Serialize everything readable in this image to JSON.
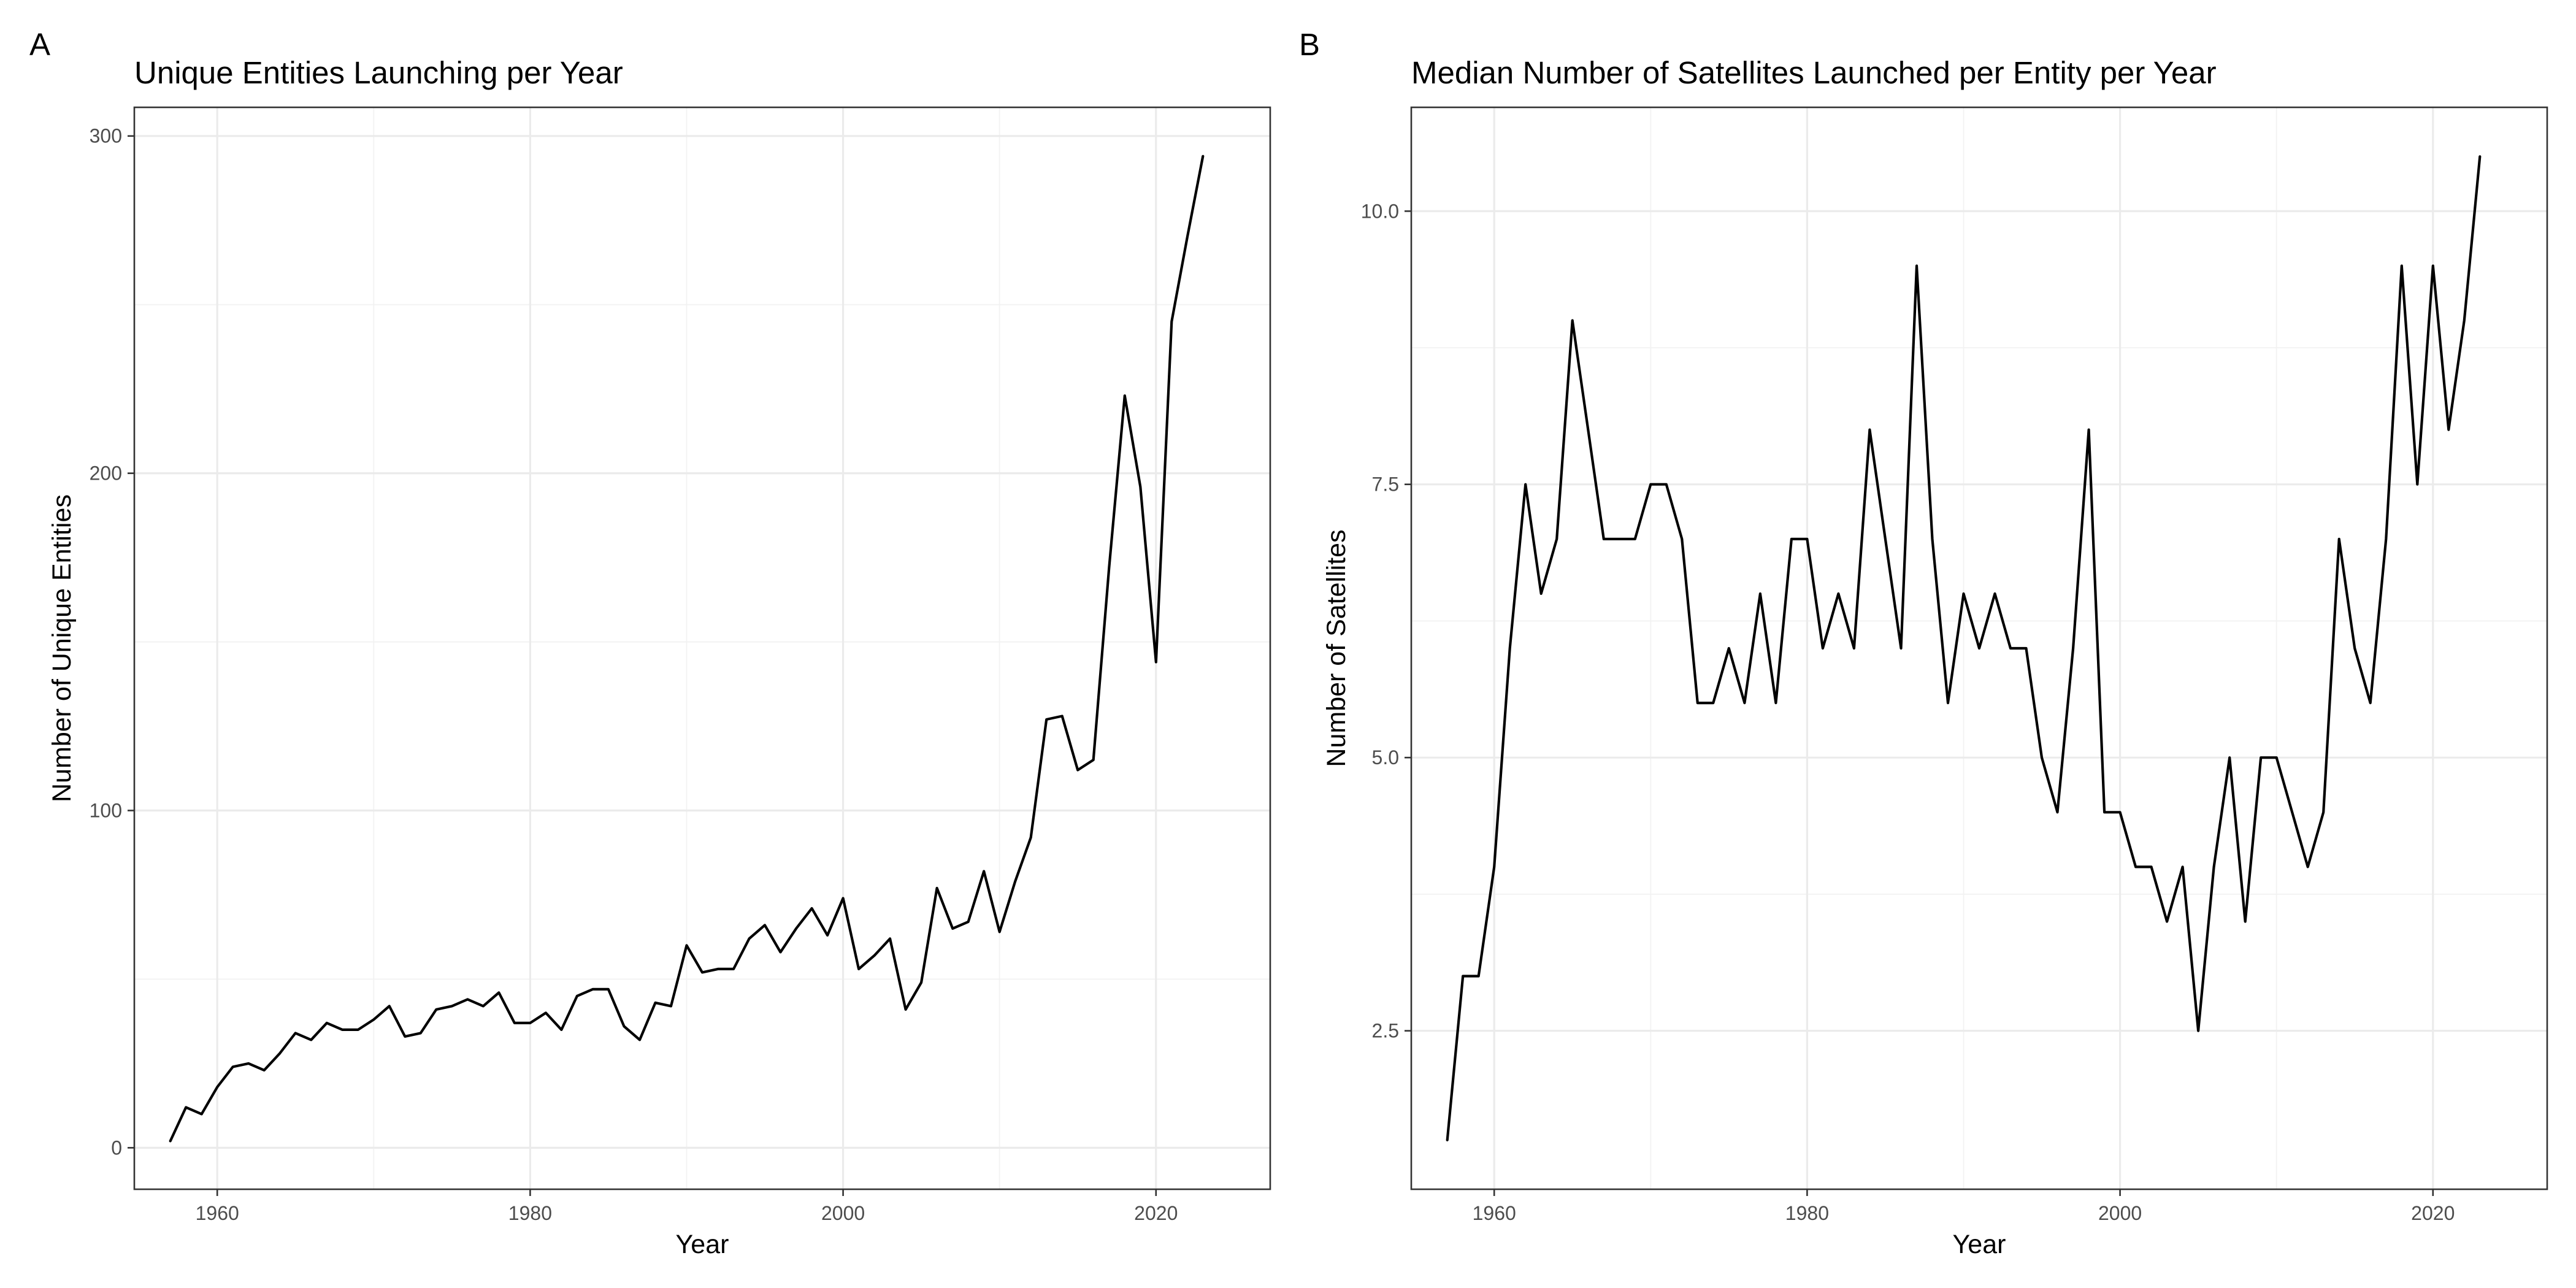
{
  "chart_data": [
    {
      "panel": "A",
      "type": "line",
      "title": "Unique Entities Launching per Year",
      "xlabel": "Year",
      "ylabel": "Number of Unique Entities",
      "xlim": [
        1954.7,
        2027.3
      ],
      "ylim": [
        -12.3,
        308.5
      ],
      "x_ticks": [
        1960,
        1980,
        2000,
        2020
      ],
      "y_ticks": [
        0,
        100,
        200,
        300
      ],
      "y_minor": [
        50,
        150,
        250
      ],
      "x_minor": [
        1970,
        1990,
        2010
      ],
      "grid": true,
      "legend": "none",
      "series": [
        {
          "x": [
            1957,
            1958,
            1959,
            1960,
            1961,
            1962,
            1963,
            1964,
            1965,
            1966,
            1967,
            1968,
            1969,
            1970,
            1971,
            1972,
            1973,
            1974,
            1975,
            1976,
            1977,
            1978,
            1979,
            1980,
            1981,
            1982,
            1983,
            1984,
            1985,
            1986,
            1987,
            1988,
            1989,
            1990,
            1991,
            1992,
            1993,
            1994,
            1995,
            1996,
            1997,
            1998,
            1999,
            2000,
            2001,
            2002,
            2003,
            2004,
            2005,
            2006,
            2007,
            2008,
            2009,
            2010,
            2011,
            2012,
            2013,
            2014,
            2015,
            2016,
            2017,
            2018,
            2019,
            2020,
            2021,
            2022,
            2023
          ],
          "y": [
            2,
            12,
            10,
            18,
            24,
            25,
            23,
            28,
            34,
            32,
            37,
            35,
            35,
            38,
            42,
            33,
            34,
            41,
            42,
            44,
            42,
            46,
            37,
            37,
            40,
            35,
            45,
            47,
            47,
            36,
            32,
            43,
            42,
            60,
            52,
            53,
            53,
            62,
            66,
            58,
            65,
            71,
            63,
            74,
            53,
            57,
            62,
            41,
            49,
            77,
            65,
            67,
            82,
            64,
            79,
            92,
            127,
            128,
            112,
            115,
            172,
            223,
            196,
            144,
            245,
            270,
            294
          ]
        }
      ]
    },
    {
      "panel": "B",
      "type": "line",
      "title": "Median Number of Satellites Launched per Entity per Year",
      "xlabel": "Year",
      "ylabel": "Number of Satellites",
      "xlim": [
        1954.7,
        2027.3
      ],
      "ylim": [
        1.05,
        10.95
      ],
      "x_ticks": [
        1960,
        1980,
        2000,
        2020
      ],
      "y_ticks": [
        2.5,
        5.0,
        7.5,
        10.0
      ],
      "y_tick_labels": [
        "2.5",
        "5.0",
        "7.5",
        "10.0"
      ],
      "y_minor": [
        3.75,
        6.25,
        8.75
      ],
      "x_minor": [
        1970,
        1990,
        2010
      ],
      "grid": true,
      "legend": "none",
      "series": [
        {
          "x": [
            1957,
            1958,
            1959,
            1960,
            1961,
            1962,
            1963,
            1964,
            1965,
            1966,
            1967,
            1968,
            1969,
            1970,
            1971,
            1972,
            1973,
            1974,
            1975,
            1976,
            1977,
            1978,
            1979,
            1980,
            1981,
            1982,
            1983,
            1984,
            1985,
            1986,
            1987,
            1988,
            1989,
            1990,
            1991,
            1992,
            1993,
            1994,
            1995,
            1996,
            1997,
            1998,
            1999,
            2000,
            2001,
            2002,
            2003,
            2004,
            2005,
            2006,
            2007,
            2008,
            2009,
            2010,
            2011,
            2012,
            2013,
            2014,
            2015,
            2016,
            2017,
            2018,
            2019,
            2020,
            2021,
            2022,
            2023
          ],
          "y": [
            1.5,
            3,
            3,
            4,
            6,
            7.5,
            6.5,
            7,
            9,
            8,
            7,
            7,
            7,
            7.5,
            7.5,
            7,
            5.5,
            5.5,
            6,
            5.5,
            6.5,
            5.5,
            7,
            7,
            6,
            6.5,
            6,
            8,
            7,
            6,
            9.5,
            7,
            5.5,
            6.5,
            6,
            6.5,
            6,
            6,
            5,
            4.5,
            6,
            8,
            4.5,
            4.5,
            4,
            4,
            3.5,
            4,
            2.5,
            4,
            5,
            3.5,
            5,
            5,
            4.5,
            4,
            4.5,
            7,
            6,
            5.5,
            7,
            9.5,
            7.5,
            9.5,
            8,
            9,
            10.5
          ]
        }
      ]
    }
  ]
}
